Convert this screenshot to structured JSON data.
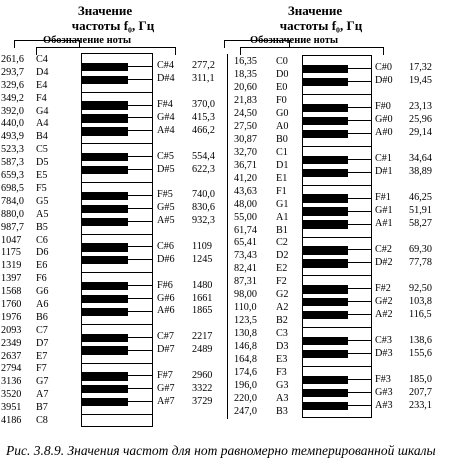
{
  "header": {
    "title_line1": "Значение",
    "title_line2": "частоты f₀, Гц",
    "note_label": "Обозначение ноты"
  },
  "caption": "Рис. 3.8.9. Значения частот для нот равномерно темперированной шкалы",
  "right_panel": {
    "white_keys": [
      {
        "freq": "16,35",
        "note": "C0"
      },
      {
        "freq": "18,35",
        "note": "D0"
      },
      {
        "freq": "20,60",
        "note": "E0"
      },
      {
        "freq": "21,83",
        "note": "F0"
      },
      {
        "freq": "24,50",
        "note": "G0"
      },
      {
        "freq": "27,50",
        "note": "A0"
      },
      {
        "freq": "30,87",
        "note": "B0"
      },
      {
        "freq": "32,70",
        "note": "C1"
      },
      {
        "freq": "36,71",
        "note": "D1"
      },
      {
        "freq": "41,20",
        "note": "E1"
      },
      {
        "freq": "43,63",
        "note": "F1"
      },
      {
        "freq": "48,00",
        "note": "G1"
      },
      {
        "freq": "55,00",
        "note": "A1"
      },
      {
        "freq": "61,74",
        "note": "B1"
      },
      {
        "freq": "65,41",
        "note": "C2"
      },
      {
        "freq": "73,43",
        "note": "D2"
      },
      {
        "freq": "82,41",
        "note": "E2"
      },
      {
        "freq": "87,31",
        "note": "F2"
      },
      {
        "freq": "98,00",
        "note": "G2"
      },
      {
        "freq": "110,0",
        "note": "A2"
      },
      {
        "freq": "123,5",
        "note": "B2"
      },
      {
        "freq": "130,8",
        "note": "C3"
      },
      {
        "freq": "146,8",
        "note": "D3"
      },
      {
        "freq": "164,8",
        "note": "E3"
      },
      {
        "freq": "174,6",
        "note": "F3"
      },
      {
        "freq": "196,0",
        "note": "G3"
      },
      {
        "freq": "220,0",
        "note": "A3"
      },
      {
        "freq": "247,0",
        "note": "B3"
      }
    ],
    "black_keys": [
      {
        "note": "C#0",
        "freq": "17,32"
      },
      {
        "note": "D#0",
        "freq": "19,45"
      },
      {
        "note": "F#0",
        "freq": "23,13"
      },
      {
        "note": "G#0",
        "freq": "25,96"
      },
      {
        "note": "A#0",
        "freq": "29,14"
      },
      {
        "note": "C#1",
        "freq": "34,64"
      },
      {
        "note": "D#1",
        "freq": "38,89"
      },
      {
        "note": "F#1",
        "freq": "46,25"
      },
      {
        "note": "G#1",
        "freq": "51,91"
      },
      {
        "note": "A#1",
        "freq": "58,27"
      },
      {
        "note": "C#2",
        "freq": "69,30"
      },
      {
        "note": "D#2",
        "freq": "77,78"
      },
      {
        "note": "F#2",
        "freq": "92,50"
      },
      {
        "note": "G#2",
        "freq": "103,8"
      },
      {
        "note": "A#2",
        "freq": "116,5"
      },
      {
        "note": "C#3",
        "freq": "138,6"
      },
      {
        "note": "D#3",
        "freq": "155,6"
      },
      {
        "note": "F#3",
        "freq": "185,0"
      },
      {
        "note": "G#3",
        "freq": "207,7"
      },
      {
        "note": "A#3",
        "freq": "233,1"
      }
    ]
  },
  "left_panel": {
    "white_keys": [
      {
        "freq": "261,6",
        "note": "C4"
      },
      {
        "freq": "293,7",
        "note": "D4"
      },
      {
        "freq": "329,6",
        "note": "E4"
      },
      {
        "freq": "349,2",
        "note": "F4"
      },
      {
        "freq": "392,0",
        "note": "G4"
      },
      {
        "freq": "440,0",
        "note": "A4"
      },
      {
        "freq": "493,9",
        "note": "B4"
      },
      {
        "freq": "523,3",
        "note": "C5"
      },
      {
        "freq": "587,3",
        "note": "D5"
      },
      {
        "freq": "659,3",
        "note": "E5"
      },
      {
        "freq": "698,5",
        "note": "F5"
      },
      {
        "freq": "784,0",
        "note": "G5"
      },
      {
        "freq": "880,0",
        "note": "A5"
      },
      {
        "freq": "987,7",
        "note": "B5"
      },
      {
        "freq": "1047",
        "note": "C6"
      },
      {
        "freq": "1175",
        "note": "D6"
      },
      {
        "freq": "1319",
        "note": "E6"
      },
      {
        "freq": "1397",
        "note": "F6"
      },
      {
        "freq": "1568",
        "note": "G6"
      },
      {
        "freq": "1760",
        "note": "A6"
      },
      {
        "freq": "1976",
        "note": "B6"
      },
      {
        "freq": "2093",
        "note": "C7"
      },
      {
        "freq": "2349",
        "note": "D7"
      },
      {
        "freq": "2637",
        "note": "E7"
      },
      {
        "freq": "2794",
        "note": "F7"
      },
      {
        "freq": "3136",
        "note": "G7"
      },
      {
        "freq": "3520",
        "note": "A7"
      },
      {
        "freq": "3951",
        "note": "B7"
      },
      {
        "freq": "4186",
        "note": "C8"
      }
    ],
    "black_keys": [
      {
        "note": "C#4",
        "freq": "277,2"
      },
      {
        "note": "D#4",
        "freq": "311,1"
      },
      {
        "note": "F#4",
        "freq": "370,0"
      },
      {
        "note": "G#4",
        "freq": "415,3"
      },
      {
        "note": "A#4",
        "freq": "466,2"
      },
      {
        "note": "C#5",
        "freq": "554,4"
      },
      {
        "note": "D#5",
        "freq": "622,3"
      },
      {
        "note": "F#5",
        "freq": "740,0"
      },
      {
        "note": "G#5",
        "freq": "830,6"
      },
      {
        "note": "A#5",
        "freq": "932,3"
      },
      {
        "note": "C#6",
        "freq": "1109"
      },
      {
        "note": "D#6",
        "freq": "1245"
      },
      {
        "note": "F#6",
        "freq": "1480"
      },
      {
        "note": "G#6",
        "freq": "1661"
      },
      {
        "note": "A#6",
        "freq": "1865"
      },
      {
        "note": "C#7",
        "freq": "2217"
      },
      {
        "note": "D#7",
        "freq": "2489"
      },
      {
        "note": "F#7",
        "freq": "2960"
      },
      {
        "note": "G#7",
        "freq": "3322"
      },
      {
        "note": "A#7",
        "freq": "3729"
      }
    ]
  }
}
